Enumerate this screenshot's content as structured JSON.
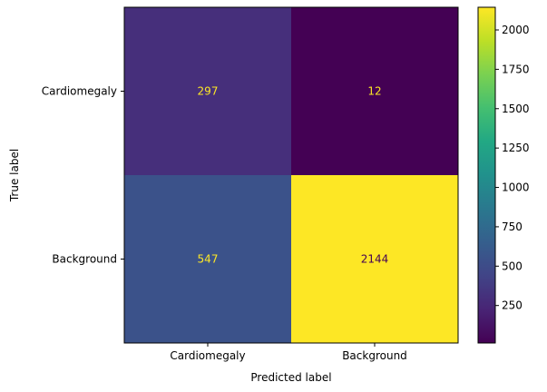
{
  "chart_data": {
    "type": "heatmap",
    "xlabel": "Predicted label",
    "ylabel": "True label",
    "x_categories": [
      "Cardiomegaly",
      "Background"
    ],
    "y_categories": [
      "Cardiomegaly",
      "Background"
    ],
    "values": [
      [
        297,
        12
      ],
      [
        547,
        2144
      ]
    ],
    "colorbar": {
      "colormap": "viridis",
      "ticks": [
        250,
        500,
        750,
        1000,
        1250,
        1500,
        1750,
        2000
      ]
    },
    "colors": {
      "cell_text_light": "#fde725",
      "cell_text_dark": "#440154"
    }
  }
}
